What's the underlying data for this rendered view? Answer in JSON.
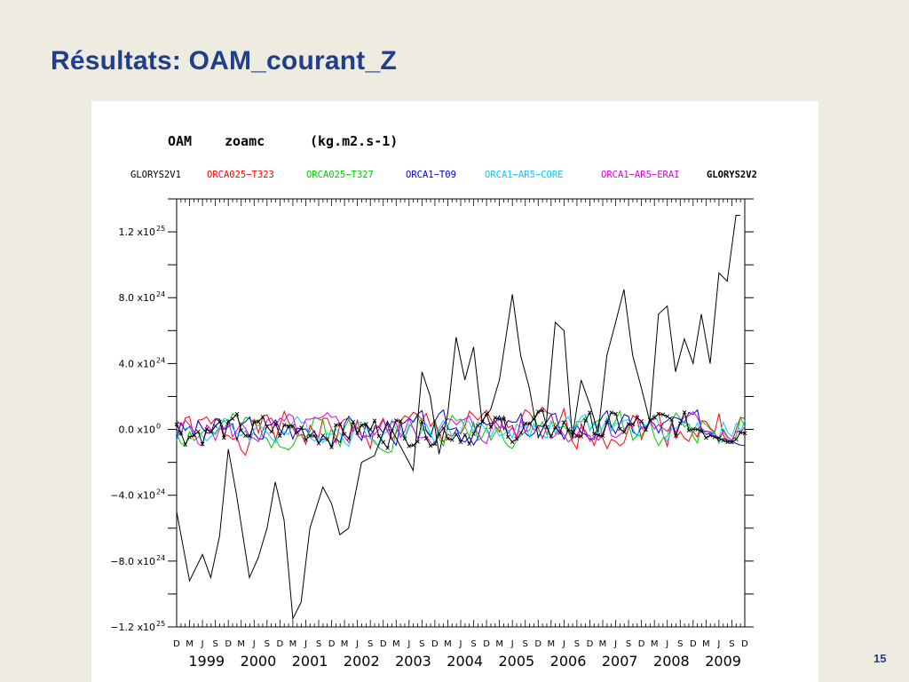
{
  "slide": {
    "title": "Résultats: OAM_courant_Z",
    "page_number": "15"
  },
  "chart_data": {
    "type": "line",
    "title": "OAM     zoamc      (kg.m2.s-1)",
    "title_parts": [
      "OAM",
      "zoamc",
      "(kg.m2.s-1)"
    ],
    "xlabel": "",
    "ylabel": "",
    "xlim": [
      1998.92,
      2009.92
    ],
    "ylim": [
      -1.2e+25,
      1.4e+25
    ],
    "grid": false,
    "legend_position": "top",
    "y_ticks": [
      {
        "value": 1.2e+25,
        "mantissa": "1.2 x10",
        "exp": "25"
      },
      {
        "value": 8e+24,
        "mantissa": "8.0 x10",
        "exp": "24"
      },
      {
        "value": 4e+24,
        "mantissa": "4.0 x10",
        "exp": "24"
      },
      {
        "value": 0,
        "mantissa": "0.0 x10",
        "exp": "0"
      },
      {
        "value": -4e+24,
        "mantissa": "−4.0 x10",
        "exp": "24"
      },
      {
        "value": -8e+24,
        "mantissa": "−8.0 x10",
        "exp": "24"
      },
      {
        "value": -1.2e+25,
        "mantissa": "−1.2 x10",
        "exp": "25"
      }
    ],
    "month_ticks": [
      "D",
      "M",
      "J",
      "S",
      "D",
      "M",
      "J",
      "S",
      "D",
      "M",
      "J",
      "S",
      "D",
      "M",
      "J",
      "S",
      "D",
      "M",
      "J",
      "S",
      "D",
      "M",
      "J",
      "S",
      "D",
      "M",
      "J",
      "S",
      "D",
      "M",
      "J",
      "S",
      "D",
      "M",
      "J",
      "S",
      "D",
      "M",
      "J",
      "S",
      "D",
      "M",
      "J",
      "S",
      "D"
    ],
    "year_labels": [
      "1999",
      "2000",
      "2001",
      "2002",
      "2003",
      "2004",
      "2005",
      "2006",
      "2007",
      "2008",
      "2009"
    ],
    "series": [
      {
        "name": "GLORYS2V1",
        "color": "#000000",
        "x": [
          1998.92,
          1999.17,
          1999.42,
          1999.58,
          1999.75,
          1999.92,
          2000.08,
          2000.33,
          2000.5,
          2000.67,
          2000.83,
          2001.0,
          2001.17,
          2001.33,
          2001.5,
          2001.75,
          2001.92,
          2002.08,
          2002.25,
          2002.5,
          2002.75,
          2003.0,
          2003.25,
          2003.5,
          2003.67,
          2003.83,
          2004.0,
          2004.17,
          2004.33,
          2004.5,
          2004.67,
          2004.83,
          2005.0,
          2005.17,
          2005.42,
          2005.58,
          2005.75,
          2005.92,
          2006.08,
          2006.25,
          2006.42,
          2006.58,
          2006.75,
          2006.92,
          2007.08,
          2007.25,
          2007.42,
          2007.58,
          2007.75,
          2007.92,
          2008.08,
          2008.25,
          2008.42,
          2008.58,
          2008.75,
          2008.92,
          2009.08,
          2009.25,
          2009.42,
          2009.58,
          2009.75,
          2009.83
        ],
        "values": [
          -5e+24,
          -9.2e+24,
          -7.6e+24,
          -9e+24,
          -6.5e+24,
          -1.2e+24,
          -4e+24,
          -9e+24,
          -7.8e+24,
          -6e+24,
          -3.2e+24,
          -5.5e+24,
          -1.15e+25,
          -1.05e+25,
          -6e+24,
          -3.5e+24,
          -4.5e+24,
          -6.4e+24,
          -6e+24,
          -2e+24,
          -1.6e+24,
          5e+23,
          -1e+24,
          -2.5e+24,
          3.5e+24,
          2e+24,
          -1.5e+24,
          1e+24,
          5.6e+24,
          3e+24,
          5e+24,
          5e+23,
          1.2e+24,
          3e+24,
          8.2e+24,
          4.5e+24,
          2.5e+24,
          -5e+23,
          5e+23,
          6.5e+24,
          6e+24,
          -5e+23,
          3e+24,
          1.5e+24,
          -2e+23,
          4.5e+24,
          6.5e+24,
          8.5e+24,
          4.5e+24,
          2.5e+24,
          5e+23,
          7e+24,
          7.5e+24,
          3.5e+24,
          5.5e+24,
          4e+24,
          7e+24,
          4e+24,
          9.5e+24,
          9e+24,
          1.3e+25,
          1.3e+25
        ]
      },
      {
        "name": "ORCA025−T323",
        "color": "#ff0000",
        "seed": 1,
        "amp": 1e+24
      },
      {
        "name": "ORCA025−T327",
        "color": "#00cc00",
        "seed": 2,
        "amp": 9e+23
      },
      {
        "name": "ORCA1−T09",
        "color": "#0000cc",
        "seed": 3,
        "amp": 8e+23
      },
      {
        "name": "ORCA1−AR5−CORE",
        "color": "#00ccff",
        "seed": 4,
        "amp": 7e+23
      },
      {
        "name": "ORCA1−AR5−ERAI",
        "color": "#dd00dd",
        "seed": 5,
        "amp": 8e+23
      },
      {
        "name": "GLORYS2V2",
        "color": "#000000",
        "markers": true,
        "seed": 6,
        "amp": 8e+23
      }
    ]
  }
}
